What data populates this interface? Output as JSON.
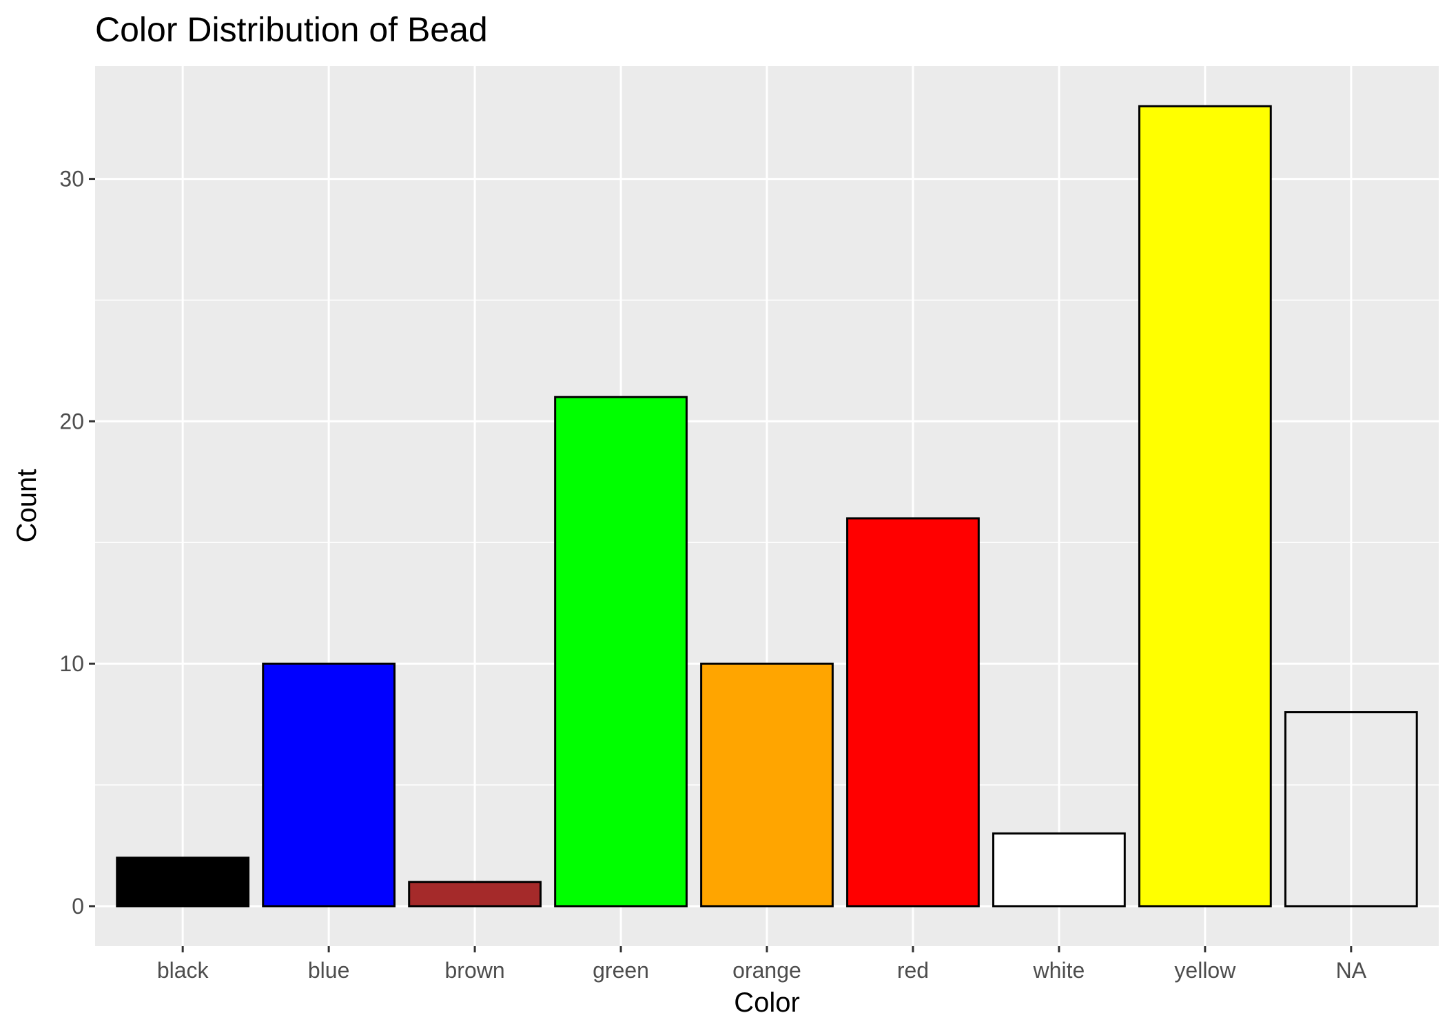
{
  "chart_data": {
    "type": "bar",
    "title": "Color Distribution of Bead",
    "xlabel": "Color",
    "ylabel": "Count",
    "categories": [
      "black",
      "blue",
      "brown",
      "green",
      "orange",
      "red",
      "white",
      "yellow",
      "NA"
    ],
    "values": [
      2,
      10,
      1,
      21,
      10,
      16,
      3,
      33,
      8
    ],
    "bar_colors": [
      "#000000",
      "#0000FF",
      "#A52A2A",
      "#00FF00",
      "#FFA500",
      "#FF0000",
      "#FFFFFF",
      "#FFFF00",
      "none"
    ],
    "bar_outline": "#000000",
    "ylim": [
      -1.65,
      34.65
    ],
    "yticks": [
      0,
      10,
      20,
      30
    ],
    "ytick_labels": [
      "0",
      "10",
      "20",
      "30"
    ],
    "grid": true,
    "panel_background": "#EBEBEB",
    "grid_color": "#FFFFFF",
    "legend": "none"
  }
}
